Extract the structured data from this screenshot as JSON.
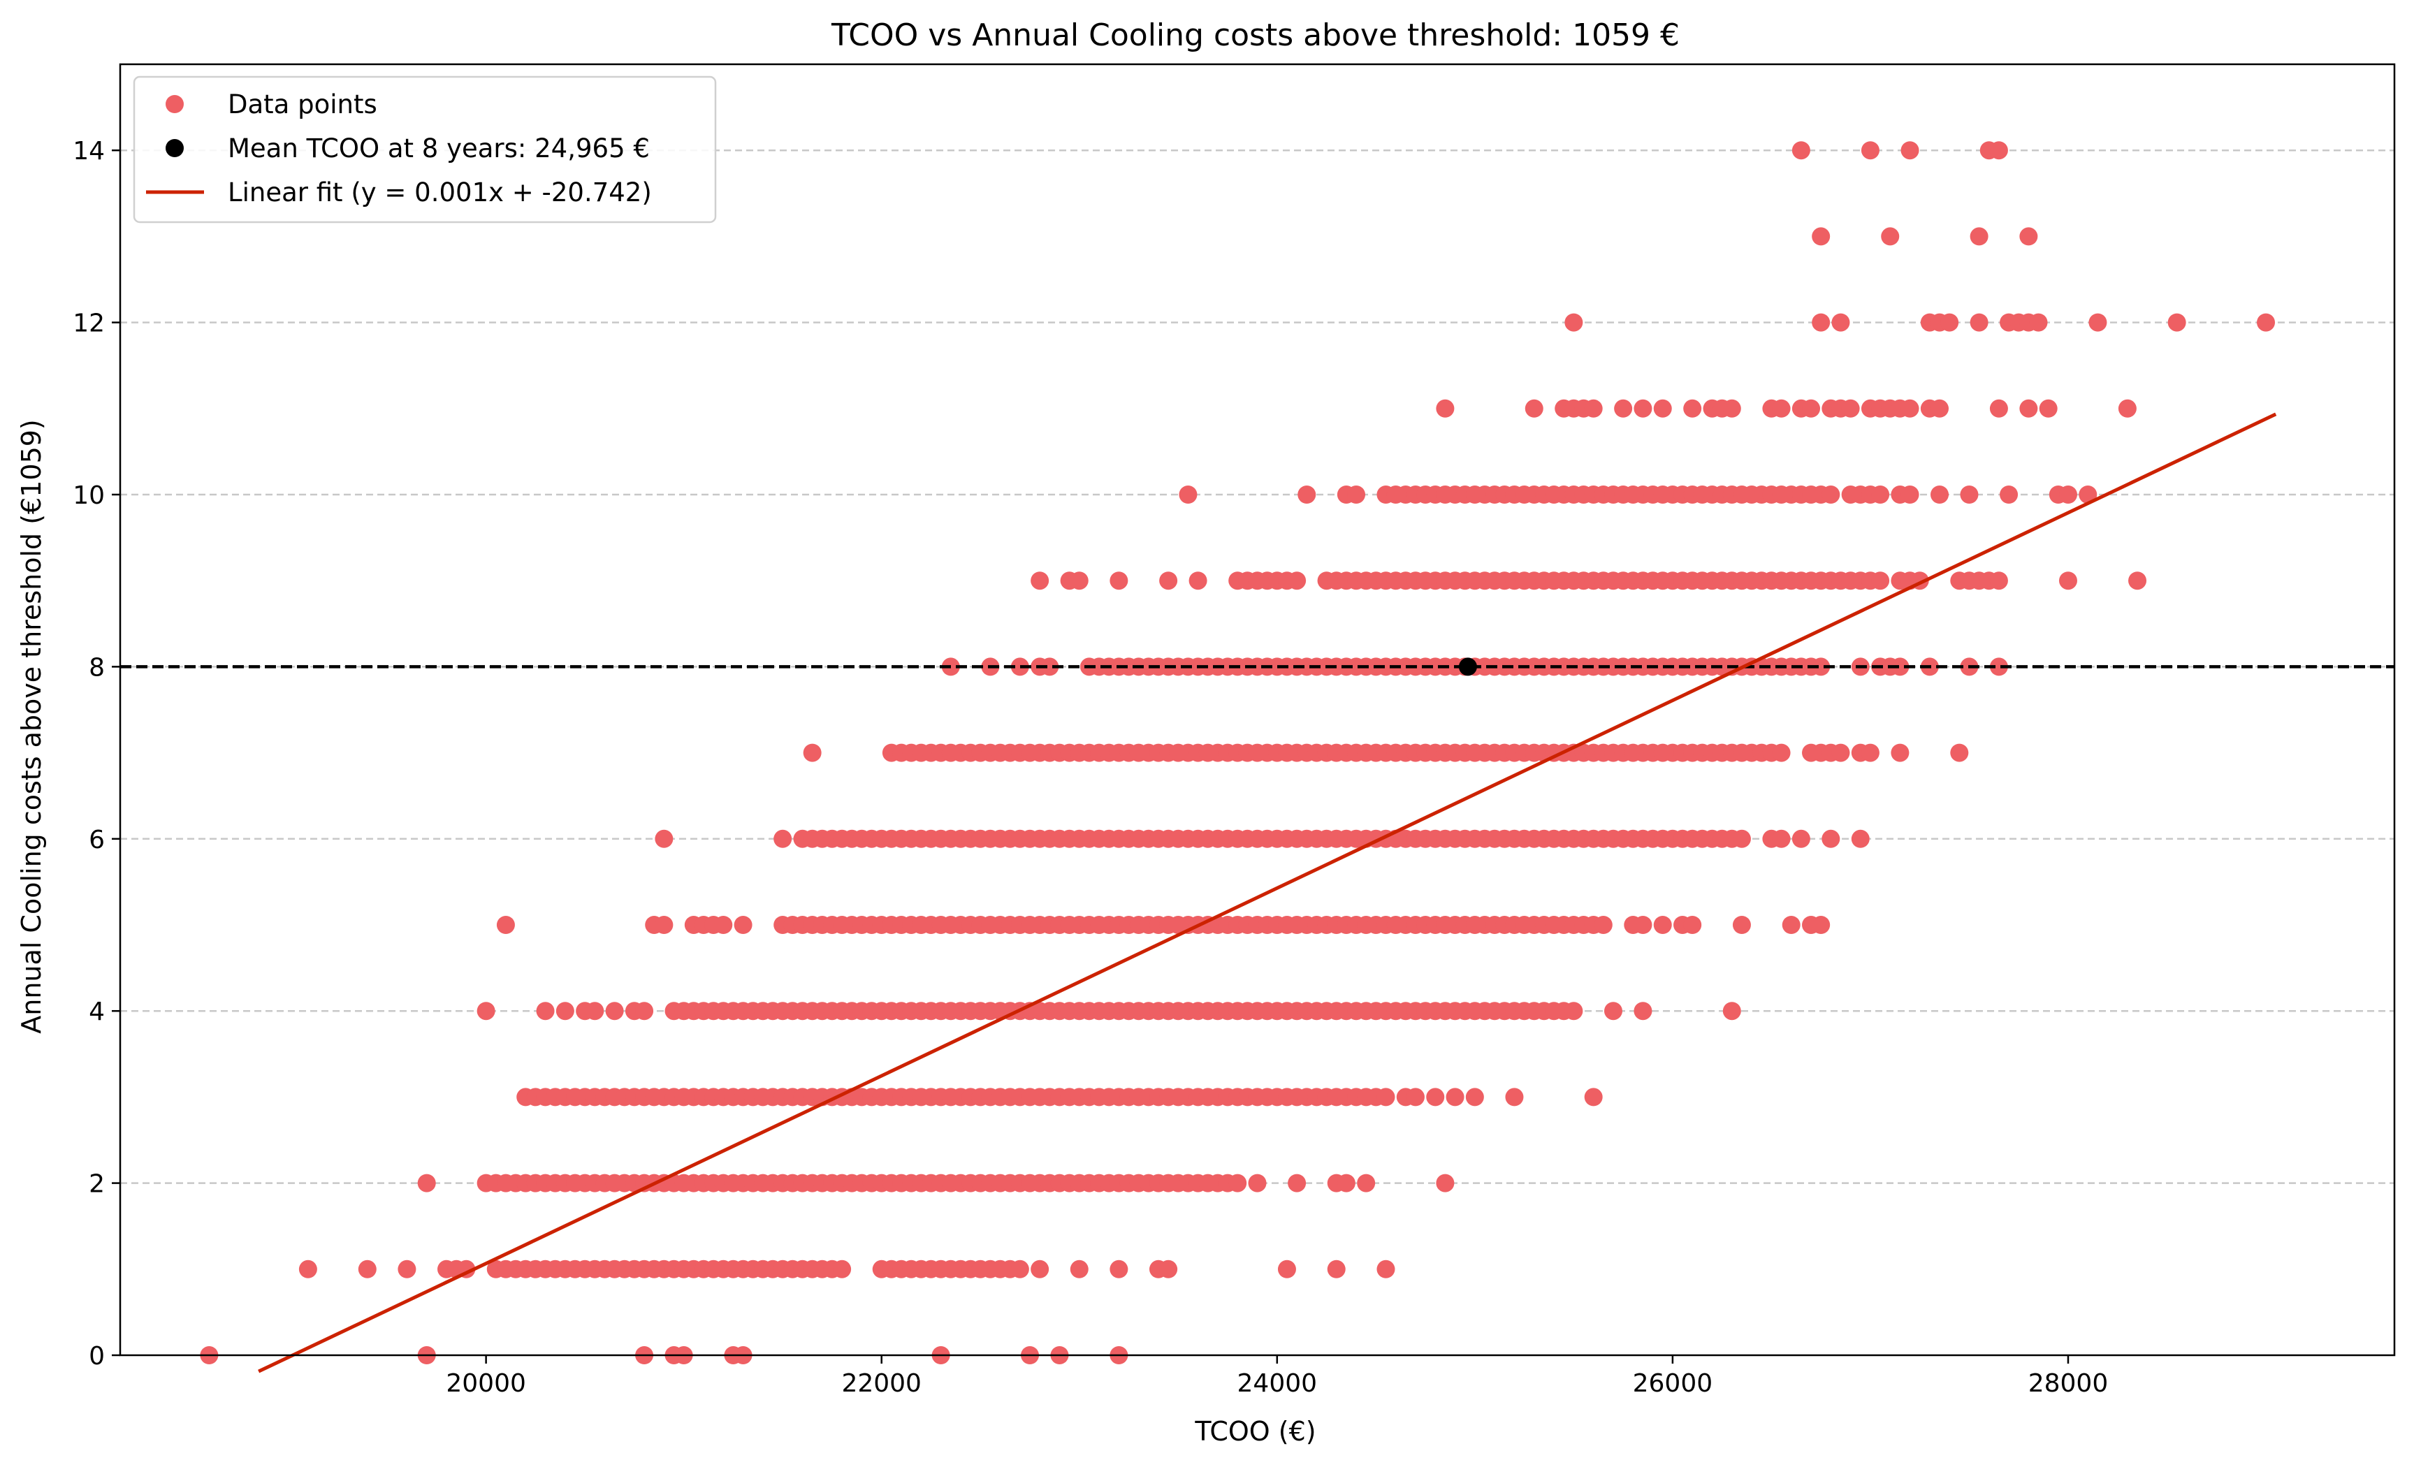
{
  "chart_data": {
    "type": "scatter",
    "title": "TCOO vs Annual Cooling costs above threshold: 1059 €",
    "xlabel": "TCOO (€)",
    "ylabel": "Annual Cooling costs above threshold (€1059)",
    "xlim": [
      18150,
      29650
    ],
    "ylim": [
      0,
      15
    ],
    "xticks": [
      20000,
      22000,
      24000,
      26000,
      28000
    ],
    "yticks": [
      0,
      2,
      4,
      6,
      8,
      10,
      12,
      14
    ],
    "grid": "horizontal dashed",
    "legend_position": "top-left",
    "colors": {
      "points": "#ee5f63",
      "mean": "#000000",
      "fit": "#cc2200",
      "hline": "#000000"
    },
    "legend": [
      {
        "label": "Data points",
        "kind": "scatter-red"
      },
      {
        "label": "Mean TCOO at 8 years: 24,965 €",
        "kind": "scatter-black"
      },
      {
        "label": "Linear fit (y = 0.001x + -20.742)",
        "kind": "line"
      }
    ],
    "mean_point": {
      "x": 24965,
      "y": 8
    },
    "reference_line_y": 8,
    "fit": {
      "slope": 0.0010904,
      "intercept": -20.742,
      "x_range": [
        18850,
        29050
      ]
    },
    "series": [
      {
        "name": "Data points",
        "y": 0,
        "x": [
          18600,
          19700,
          20800,
          20950,
          21000,
          21250,
          21300,
          22300,
          22750,
          22900,
          23200
        ]
      },
      {
        "name": "Data points",
        "y": 1,
        "x": [
          19100,
          19400,
          19600,
          19800,
          19850,
          19900
        ]
      },
      {
        "name": "Data points",
        "y": 1,
        "range": [
          20050,
          21700
        ],
        "step": 50
      },
      {
        "name": "Data points",
        "y": 1,
        "x": [
          21750,
          21800,
          22000,
          22050,
          22100,
          22150,
          22200,
          22250,
          22300,
          22350,
          22400,
          22450,
          22500,
          22550,
          22600,
          22650,
          22700,
          22800,
          23000,
          23200,
          23400,
          23450,
          24050,
          24300,
          24550
        ]
      },
      {
        "name": "Data points",
        "y": 2,
        "x": [
          19700,
          20000,
          20050,
          20100,
          20150,
          20200,
          20250
        ]
      },
      {
        "name": "Data points",
        "y": 2,
        "range": [
          20300,
          23800
        ],
        "step": 50
      },
      {
        "name": "Data points",
        "y": 2,
        "x": [
          23900,
          24100,
          24300,
          24350,
          24450,
          24850
        ]
      },
      {
        "name": "Data points",
        "y": 3,
        "range": [
          20200,
          24550
        ],
        "step": 50
      },
      {
        "name": "Data points",
        "y": 3,
        "x": [
          24650,
          24700,
          24800,
          24900,
          25000,
          25200,
          25600
        ]
      },
      {
        "name": "Data points",
        "y": 4,
        "x": [
          20000,
          20300,
          20400,
          20500,
          20550,
          20650,
          20750,
          20800
        ]
      },
      {
        "name": "Data points",
        "y": 4,
        "range": [
          20950,
          25400
        ],
        "step": 50
      },
      {
        "name": "Data points",
        "y": 4,
        "x": [
          25450,
          25500,
          25700,
          25850,
          26300
        ]
      },
      {
        "name": "Data points",
        "y": 5,
        "x": [
          20100,
          20850,
          20900,
          21050,
          21100,
          21150,
          21200,
          21300
        ]
      },
      {
        "name": "Data points",
        "y": 5,
        "range": [
          21500,
          25650
        ],
        "step": 50
      },
      {
        "name": "Data points",
        "y": 5,
        "x": [
          25800,
          25850,
          25950,
          26050,
          26100,
          26350,
          26600,
          26700,
          26750
        ]
      },
      {
        "name": "Data points",
        "y": 6,
        "x": [
          20900,
          21500,
          21600
        ]
      },
      {
        "name": "Data points",
        "y": 6,
        "range": [
          21650,
          26350
        ],
        "step": 50
      },
      {
        "name": "Data points",
        "y": 6,
        "x": [
          26500,
          26550,
          26650,
          26800,
          26950
        ]
      },
      {
        "name": "Data points",
        "y": 7,
        "x": [
          21650
        ]
      },
      {
        "name": "Data points",
        "y": 7,
        "range": [
          22050,
          26550
        ],
        "step": 50
      },
      {
        "name": "Data points",
        "y": 7,
        "x": [
          26700,
          26750,
          26800,
          26850,
          26950,
          27000,
          27150,
          27450
        ]
      },
      {
        "name": "Data points",
        "y": 8,
        "x": [
          22350,
          22550,
          22700,
          22800,
          22850
        ]
      },
      {
        "name": "Data points",
        "y": 8,
        "range": [
          23050,
          26750
        ],
        "step": 50
      },
      {
        "name": "Data points",
        "y": 8,
        "x": [
          26950,
          27050,
          27100,
          27150,
          27300,
          27500,
          27650
        ]
      },
      {
        "name": "Data points",
        "y": 9,
        "x": [
          22800,
          22950,
          23000,
          23200,
          23450,
          23600
        ]
      },
      {
        "name": "Data points",
        "y": 9,
        "range": [
          23800,
          24100
        ],
        "step": 50
      },
      {
        "name": "Data points",
        "y": 9,
        "range": [
          24250,
          27050
        ],
        "step": 50
      },
      {
        "name": "Data points",
        "y": 9,
        "x": [
          27150,
          27200,
          27250,
          27450,
          27500,
          27550,
          27600,
          27650,
          28000,
          28350
        ]
      },
      {
        "name": "Data points",
        "y": 10,
        "x": [
          23550,
          24150,
          24350,
          24400
        ]
      },
      {
        "name": "Data points",
        "y": 10,
        "range": [
          24550,
          26800
        ],
        "step": 50
      },
      {
        "name": "Data points",
        "y": 10,
        "x": [
          26900,
          26950,
          27000,
          27050,
          27150,
          27200,
          27350,
          27500,
          27700,
          27950,
          28000,
          28100
        ]
      },
      {
        "name": "Data points",
        "y": 11,
        "x": [
          24850,
          25300,
          25450,
          25500,
          25550,
          25600,
          25750,
          25850,
          25950,
          26100,
          26200,
          26250,
          26300,
          26500,
          26550,
          26650,
          26700,
          26800,
          26850,
          26900,
          27000,
          27050,
          27100,
          27150,
          27200,
          27300,
          27350,
          27650,
          27800,
          27900,
          28300
        ]
      },
      {
        "name": "Data points",
        "y": 12,
        "x": [
          25500,
          26750,
          26850,
          27300,
          27350,
          27400,
          27550,
          27700,
          27750,
          27800,
          27850,
          28150,
          28550,
          29000
        ]
      },
      {
        "name": "Data points",
        "y": 13,
        "x": [
          26750,
          27100,
          27550,
          27800
        ]
      },
      {
        "name": "Data points",
        "y": 14,
        "x": [
          26650,
          27000,
          27200,
          27600,
          27650
        ]
      }
    ]
  }
}
